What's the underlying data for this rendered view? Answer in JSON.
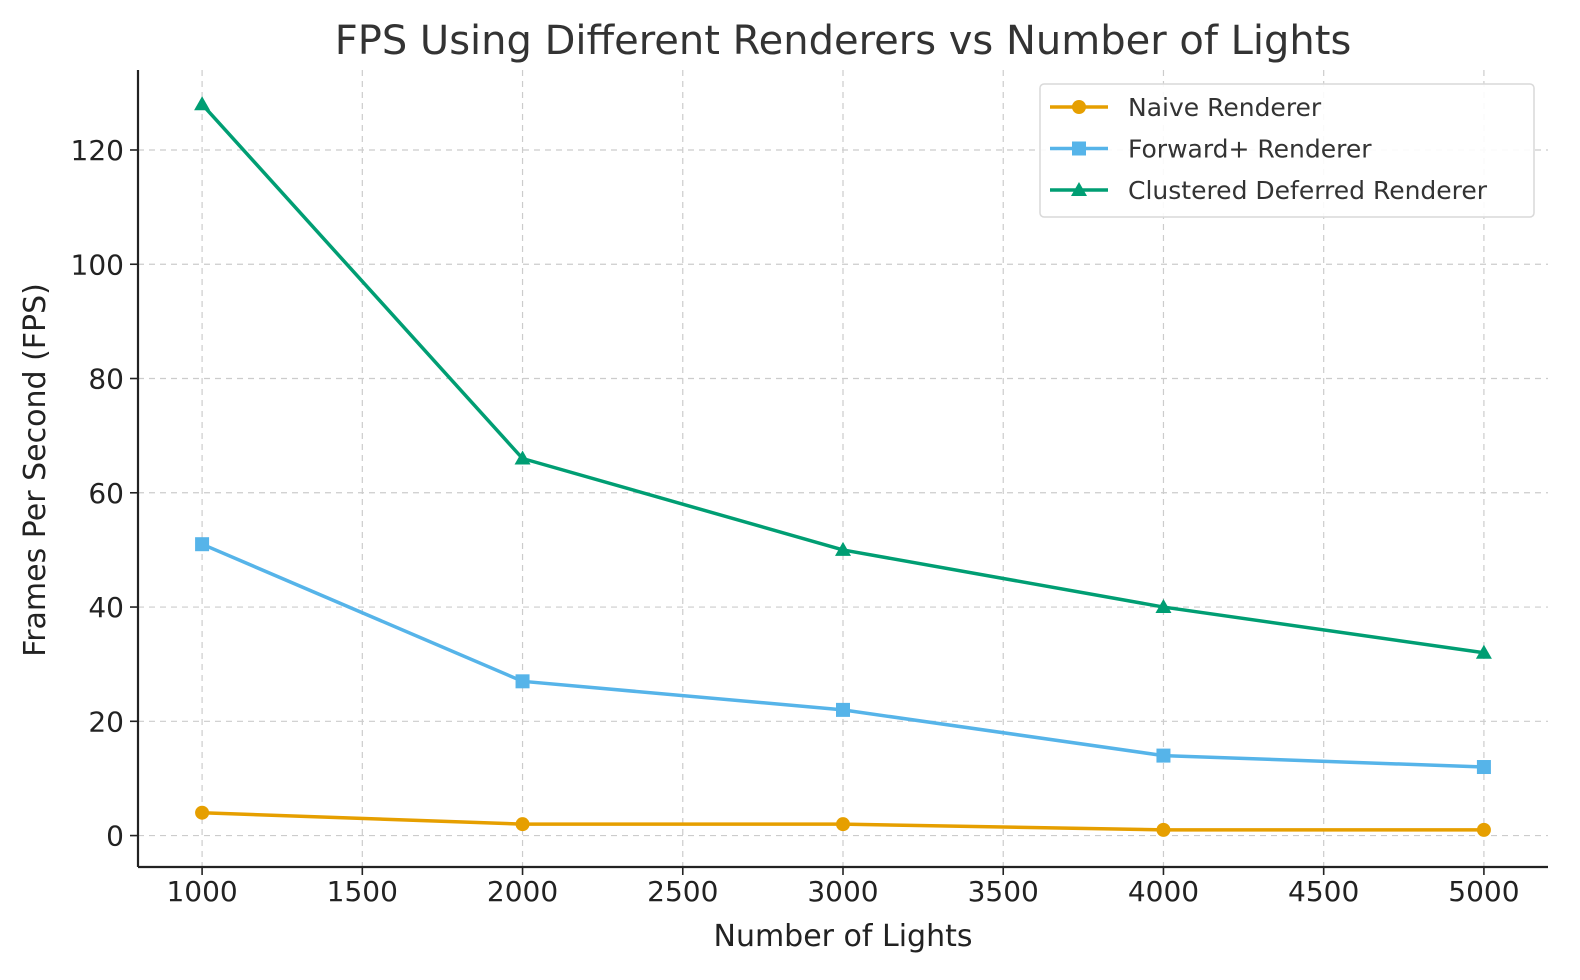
{
  "chart_data": {
    "type": "line",
    "title": "FPS Using Different Renderers vs Number of Lights",
    "xlabel": "Number of Lights",
    "ylabel": "Frames Per Second (FPS)",
    "x": [
      1000,
      2000,
      3000,
      4000,
      5000
    ],
    "xlim": [
      800,
      5200
    ],
    "ylim": [
      -5.5,
      134
    ],
    "xticks": [
      1000,
      1500,
      2000,
      2500,
      3000,
      3500,
      4000,
      4500,
      5000
    ],
    "yticks": [
      0,
      20,
      40,
      60,
      80,
      100,
      120
    ],
    "grid": true,
    "legend_position": "top-right",
    "series": [
      {
        "name": "Naive Renderer",
        "color": "#E69F00",
        "marker": "circle",
        "values": [
          4,
          2,
          2,
          1,
          1
        ]
      },
      {
        "name": "Forward+ Renderer",
        "color": "#56B4E9",
        "marker": "square",
        "values": [
          51,
          27,
          22,
          14,
          12
        ]
      },
      {
        "name": "Clustered Deferred Renderer",
        "color": "#009E73",
        "marker": "triangle",
        "values": [
          128,
          66,
          50,
          40,
          32
        ]
      }
    ]
  }
}
